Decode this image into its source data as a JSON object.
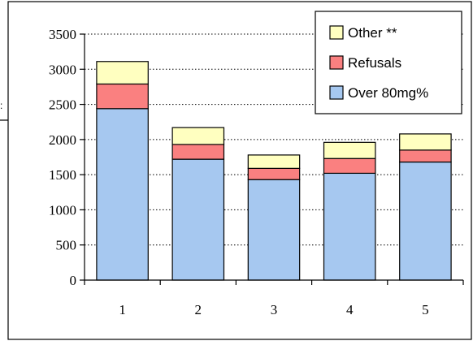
{
  "chart_data": {
    "type": "bar",
    "stacked": true,
    "categories": [
      "1",
      "2",
      "3",
      "4",
      "5"
    ],
    "series": [
      {
        "name": "Over 80mg%",
        "color": "#a6c8f0",
        "values": [
          2440,
          1720,
          1430,
          1520,
          1680
        ]
      },
      {
        "name": "Refusals",
        "color": "#fa8080",
        "values": [
          350,
          210,
          160,
          210,
          170
        ]
      },
      {
        "name": "Other **",
        "color": "#ffffc0",
        "values": [
          320,
          240,
          190,
          230,
          230
        ]
      }
    ],
    "ylim": [
      0,
      3500
    ],
    "yticks": [
      "0",
      "500",
      "1000",
      "1500",
      "2000",
      "2500",
      "3000",
      "3500"
    ],
    "grid": true,
    "legend_position": "top-right",
    "title": "",
    "xlabel": "",
    "ylabel": ""
  }
}
